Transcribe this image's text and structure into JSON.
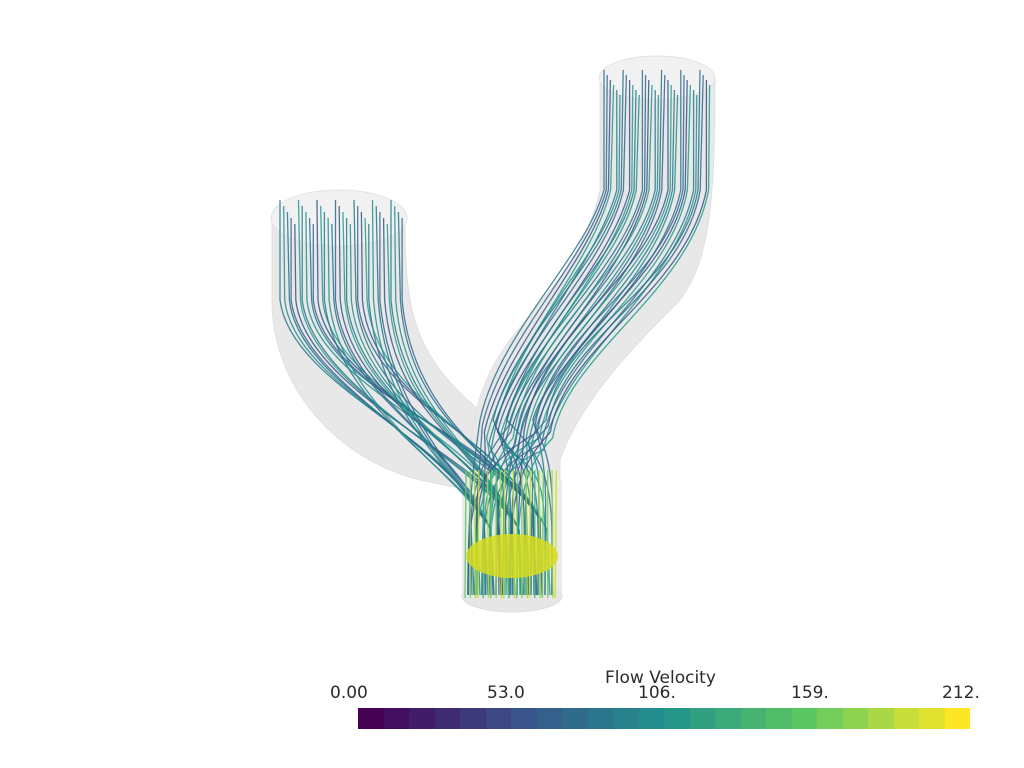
{
  "scalar_bar": {
    "title": "Flow Velocity",
    "ticks": [
      "0.00",
      "53.0",
      "106.",
      "159.",
      "212."
    ],
    "range": [
      0,
      212
    ],
    "bands": 24,
    "colormap_stops": [
      "#440154",
      "#3b528b",
      "#21918c",
      "#5ec962",
      "#fde725"
    ]
  },
  "scene": {
    "background": "#ffffff",
    "vessel_color": "#d9d9d9",
    "description_colormap": "viridis"
  }
}
